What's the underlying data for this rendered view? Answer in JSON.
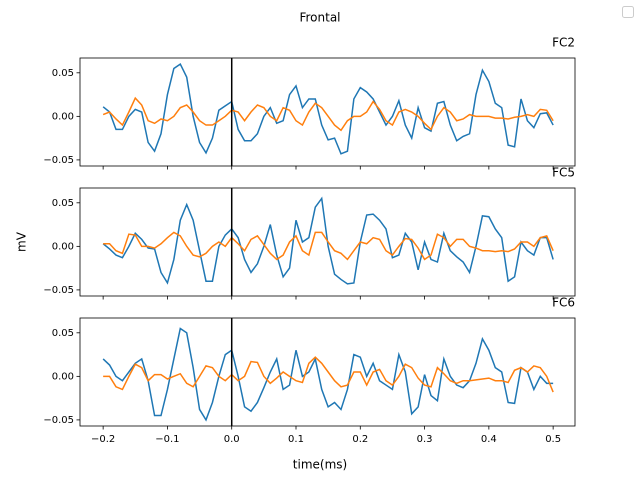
{
  "title": "Frontal",
  "x_label": "time(ms)",
  "y_label": "mV",
  "chart_data": [
    {
      "type": "line",
      "title": "FC2",
      "x": [
        -0.2,
        -0.19,
        -0.18,
        -0.17,
        -0.16,
        -0.15,
        -0.14,
        -0.13,
        -0.12,
        -0.11,
        -0.1,
        -0.09,
        -0.08,
        -0.07,
        -0.06,
        -0.05,
        -0.04,
        -0.03,
        -0.02,
        -0.01,
        0,
        0.01,
        0.02,
        0.03,
        0.04,
        0.05,
        0.06,
        0.07,
        0.08,
        0.09,
        0.1,
        0.11,
        0.12,
        0.13,
        0.14,
        0.15,
        0.16,
        0.17,
        0.18,
        0.19,
        0.2,
        0.21,
        0.22,
        0.23,
        0.24,
        0.25,
        0.26,
        0.27,
        0.28,
        0.29,
        0.3,
        0.31,
        0.32,
        0.33,
        0.34,
        0.35,
        0.36,
        0.37,
        0.38,
        0.39,
        0.4,
        0.41,
        0.42,
        0.43,
        0.44,
        0.45,
        0.46,
        0.47,
        0.48,
        0.49,
        0.5
      ],
      "series": [
        {
          "color": "#1f77b4",
          "values": [
            0.011,
            0.005,
            -0.015,
            -0.015,
            0.0,
            0.008,
            0.005,
            -0.03,
            -0.04,
            -0.02,
            0.025,
            0.055,
            0.06,
            0.045,
            0.0,
            -0.03,
            -0.042,
            -0.025,
            0.007,
            0.012,
            0.017,
            -0.015,
            -0.028,
            -0.028,
            -0.02,
            0.0,
            0.01,
            -0.008,
            -0.005,
            0.025,
            0.035,
            0.01,
            0.02,
            0.02,
            -0.01,
            -0.027,
            -0.025,
            -0.043,
            -0.04,
            0.02,
            0.033,
            0.028,
            0.02,
            0.005,
            -0.01,
            0.0,
            0.018,
            -0.01,
            -0.025,
            0.01,
            -0.013,
            -0.017,
            0.015,
            0.017,
            -0.01,
            -0.028,
            -0.023,
            -0.02,
            0.025,
            0.053,
            0.04,
            0.015,
            0.01,
            -0.033,
            -0.035,
            0.02,
            -0.005,
            -0.013,
            0.003,
            0.004,
            -0.01
          ]
        },
        {
          "color": "#ff7f0e",
          "values": [
            0.002,
            0.005,
            -0.003,
            -0.01,
            0.005,
            0.021,
            0.013,
            -0.005,
            -0.008,
            -0.003,
            -0.005,
            0.0,
            0.01,
            0.013,
            0.005,
            -0.005,
            -0.01,
            -0.01,
            -0.005,
            0.0,
            0.007,
            0.005,
            -0.005,
            0.005,
            0.013,
            0.01,
            0.0,
            -0.005,
            0.01,
            0.007,
            -0.005,
            -0.01,
            0.005,
            0.015,
            0.01,
            0.0,
            -0.01,
            -0.016,
            -0.005,
            0.0,
            0.0,
            0.005,
            0.017,
            0.008,
            -0.005,
            -0.01,
            0.005,
            0.008,
            0.005,
            0.0,
            -0.008,
            -0.015,
            0.0,
            0.01,
            0.005,
            -0.005,
            -0.003,
            0.002,
            0.0,
            0.0,
            0.0,
            -0.002,
            -0.002,
            -0.003,
            -0.001,
            0.0,
            0.002,
            0.0,
            0.008,
            0.007,
            -0.005
          ]
        }
      ],
      "vline": 0,
      "xlim": [
        -0.236,
        0.534
      ],
      "ylim": [
        -0.057,
        0.067
      ],
      "xticks": [
        -0.2,
        -0.1,
        0,
        0.1,
        0.2,
        0.3,
        0.4,
        0.5
      ],
      "xticklabels": false,
      "yticks": [
        {
          "value": -0.05,
          "label": "−0.05"
        },
        {
          "value": 0,
          "label": "0.00"
        },
        0.05
      ]
    },
    {
      "type": "line",
      "title": "FC5",
      "x": [
        -0.2,
        -0.19,
        -0.18,
        -0.17,
        -0.16,
        -0.15,
        -0.14,
        -0.13,
        -0.12,
        -0.11,
        -0.1,
        -0.09,
        -0.08,
        -0.07,
        -0.06,
        -0.05,
        -0.04,
        -0.03,
        -0.02,
        -0.01,
        0,
        0.01,
        0.02,
        0.03,
        0.04,
        0.05,
        0.06,
        0.07,
        0.08,
        0.09,
        0.1,
        0.11,
        0.12,
        0.13,
        0.14,
        0.15,
        0.16,
        0.17,
        0.18,
        0.19,
        0.2,
        0.21,
        0.22,
        0.23,
        0.24,
        0.25,
        0.26,
        0.27,
        0.28,
        0.29,
        0.3,
        0.31,
        0.32,
        0.33,
        0.34,
        0.35,
        0.36,
        0.37,
        0.38,
        0.39,
        0.4,
        0.41,
        0.42,
        0.43,
        0.44,
        0.45,
        0.46,
        0.47,
        0.48,
        0.49,
        0.5
      ],
      "series": [
        {
          "color": "#1f77b4",
          "values": [
            0.003,
            -0.003,
            -0.01,
            -0.013,
            0.0,
            0.015,
            0.008,
            -0.002,
            -0.003,
            -0.03,
            -0.042,
            -0.015,
            0.03,
            0.048,
            0.03,
            -0.005,
            -0.04,
            -0.04,
            0.0,
            0.013,
            0.02,
            0.01,
            -0.015,
            -0.03,
            -0.02,
            0.0,
            0.025,
            -0.01,
            -0.035,
            -0.025,
            0.03,
            0.005,
            0.01,
            0.045,
            0.055,
            0.0,
            -0.032,
            -0.038,
            -0.043,
            -0.042,
            0.005,
            0.036,
            0.037,
            0.03,
            0.02,
            -0.013,
            -0.01,
            0.015,
            0.005,
            -0.027,
            0.005,
            -0.015,
            -0.018,
            0.015,
            -0.005,
            -0.012,
            -0.018,
            -0.03,
            0.0,
            0.035,
            0.034,
            0.02,
            0.01,
            -0.04,
            -0.035,
            0.005,
            -0.005,
            -0.01,
            0.01,
            0.01,
            -0.015
          ]
        },
        {
          "color": "#ff7f0e",
          "values": [
            0.003,
            0.003,
            -0.005,
            -0.008,
            0.014,
            0.013,
            0.0,
            0.0,
            -0.002,
            0.003,
            0.01,
            0.016,
            0.012,
            0.0,
            -0.01,
            -0.012,
            -0.008,
            0.0,
            0.005,
            0.0,
            0.01,
            0.003,
            -0.005,
            0.008,
            0.012,
            0.002,
            -0.008,
            -0.015,
            -0.01,
            0.005,
            0.012,
            -0.005,
            -0.01,
            0.016,
            0.016,
            0.005,
            -0.005,
            -0.008,
            -0.015,
            -0.005,
            0.005,
            0.003,
            0.01,
            0.008,
            -0.005,
            -0.01,
            0.0,
            0.009,
            0.008,
            -0.002,
            -0.015,
            -0.01,
            0.014,
            0.01,
            0.0,
            0.008,
            0.008,
            0.0,
            -0.002,
            -0.005,
            -0.005,
            -0.006,
            -0.005,
            -0.006,
            -0.003,
            0.005,
            0.005,
            0.0,
            0.01,
            0.012,
            -0.005
          ]
        }
      ],
      "vline": 0,
      "xlim": [
        -0.236,
        0.534
      ],
      "ylim": [
        -0.057,
        0.067
      ],
      "xticks": [
        -0.2,
        -0.1,
        0,
        0.1,
        0.2,
        0.3,
        0.4,
        0.5
      ],
      "xticklabels": false,
      "yticks": [
        {
          "value": -0.05,
          "label": "−0.05"
        },
        {
          "value": 0,
          "label": "0.00"
        },
        0.05
      ]
    },
    {
      "type": "line",
      "title": "FC6",
      "x": [
        -0.2,
        -0.19,
        -0.18,
        -0.17,
        -0.16,
        -0.15,
        -0.14,
        -0.13,
        -0.12,
        -0.11,
        -0.1,
        -0.09,
        -0.08,
        -0.07,
        -0.06,
        -0.05,
        -0.04,
        -0.03,
        -0.02,
        -0.01,
        0,
        0.01,
        0.02,
        0.03,
        0.04,
        0.05,
        0.06,
        0.07,
        0.08,
        0.09,
        0.1,
        0.11,
        0.12,
        0.13,
        0.14,
        0.15,
        0.16,
        0.17,
        0.18,
        0.19,
        0.2,
        0.21,
        0.22,
        0.23,
        0.24,
        0.25,
        0.26,
        0.27,
        0.28,
        0.29,
        0.3,
        0.31,
        0.32,
        0.33,
        0.34,
        0.35,
        0.36,
        0.37,
        0.38,
        0.39,
        0.4,
        0.41,
        0.42,
        0.43,
        0.44,
        0.45,
        0.46,
        0.47,
        0.48,
        0.49,
        0.5
      ],
      "series": [
        {
          "color": "#1f77b4",
          "values": [
            0.02,
            0.013,
            0.0,
            -0.005,
            0.005,
            0.015,
            0.02,
            -0.005,
            -0.045,
            -0.045,
            -0.015,
            0.02,
            0.055,
            0.05,
            0.01,
            -0.038,
            -0.05,
            -0.03,
            0.0,
            0.025,
            0.03,
            0.0,
            -0.035,
            -0.04,
            -0.03,
            -0.013,
            0.005,
            0.02,
            -0.015,
            -0.01,
            0.03,
            0.0,
            0.005,
            0.02,
            -0.015,
            -0.035,
            -0.03,
            -0.038,
            -0.015,
            0.025,
            0.022,
            0.0,
            0.015,
            -0.005,
            -0.01,
            -0.015,
            0.025,
            0.005,
            -0.043,
            -0.035,
            0.002,
            -0.022,
            -0.028,
            0.02,
            0.0,
            -0.01,
            -0.013,
            -0.005,
            0.015,
            0.043,
            0.03,
            0.01,
            0.005,
            -0.03,
            -0.031,
            0.01,
            0.005,
            -0.015,
            0.0,
            -0.008,
            -0.008
          ]
        },
        {
          "color": "#ff7f0e",
          "values": [
            0.0,
            0.0,
            -0.012,
            -0.015,
            0.0,
            0.014,
            0.01,
            -0.005,
            0.002,
            0.002,
            -0.003,
            0.0,
            0.003,
            -0.008,
            -0.012,
            0.0,
            0.012,
            0.01,
            0.0,
            -0.005,
            0.002,
            -0.005,
            0.0,
            0.017,
            0.016,
            0.0,
            -0.008,
            -0.002,
            0.005,
            0.0,
            -0.005,
            -0.007,
            0.015,
            0.022,
            0.015,
            0.005,
            -0.005,
            -0.012,
            -0.01,
            0.005,
            0.005,
            -0.01,
            0.005,
            0.008,
            -0.005,
            -0.01,
            0.0,
            0.014,
            0.01,
            -0.002,
            -0.01,
            -0.012,
            0.01,
            0.003,
            -0.005,
            -0.008,
            -0.005,
            -0.005,
            -0.004,
            -0.003,
            -0.002,
            -0.005,
            -0.005,
            -0.007,
            0.007,
            0.01,
            0.005,
            0.012,
            0.01,
            0.0,
            -0.018
          ]
        }
      ],
      "vline": 0,
      "xlim": [
        -0.236,
        0.534
      ],
      "ylim": [
        -0.057,
        0.067
      ],
      "xticks": [
        {
          "value": -0.2,
          "label": "−0.2"
        },
        {
          "value": -0.1,
          "label": "−0.1"
        },
        {
          "value": 0,
          "label": "0.0"
        },
        0.1,
        0.2,
        0.3,
        0.4,
        0.5
      ],
      "yticks": [
        {
          "value": -0.05,
          "label": "−0.05"
        },
        {
          "value": 0,
          "label": "0.00"
        },
        0.05
      ]
    }
  ]
}
